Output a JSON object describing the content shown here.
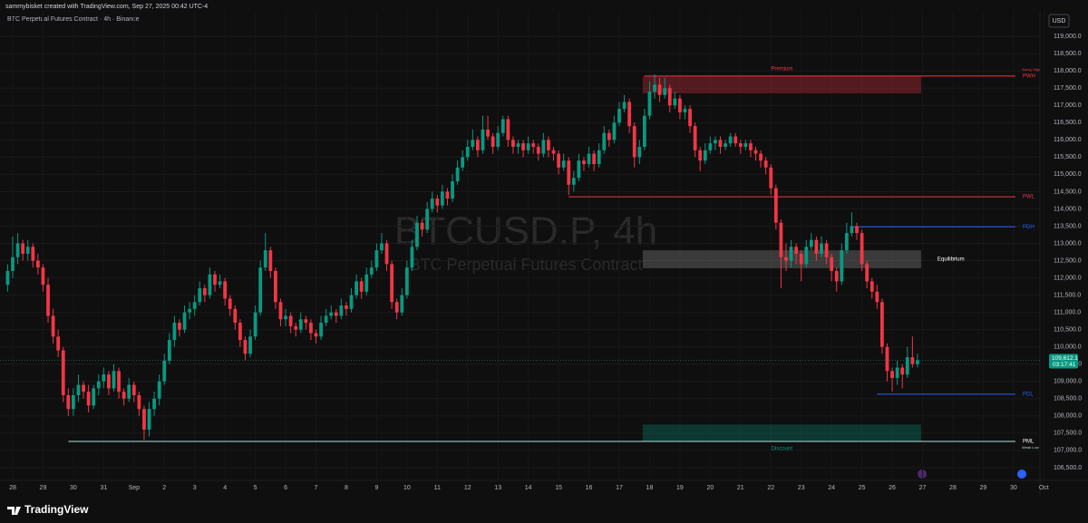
{
  "header": "sammybisket created with TradingView.com, Sep 27, 2025 00:42 UTC-4",
  "chart_data": {
    "type": "candlestick",
    "title": "BTC Perpetual Futures Contract · 4h · Binance",
    "watermark": "BTCUSD.P, 4h",
    "watermark_subtitle": "BTC Perpetual Futures Contract",
    "currency": "USD",
    "up_color": "#089981",
    "down_color": "#f23645",
    "ylim": [
      106130,
      119740
    ],
    "yticks": [
      {
        "value": 119000,
        "label": "119,000.0"
      },
      {
        "value": 118500,
        "label": "118,500.0"
      },
      {
        "value": 118000,
        "label": "118,000.0"
      },
      {
        "value": 117500,
        "label": "117,500.0"
      },
      {
        "value": 117000,
        "label": "117,000.0"
      },
      {
        "value": 116500,
        "label": "116,500.0"
      },
      {
        "value": 116000,
        "label": "116,000.0"
      },
      {
        "value": 115500,
        "label": "115,500.0"
      },
      {
        "value": 115000,
        "label": "115,000.0"
      },
      {
        "value": 114500,
        "label": "114,500.0"
      },
      {
        "value": 114000,
        "label": "114,000.0"
      },
      {
        "value": 113500,
        "label": "113,500.0"
      },
      {
        "value": 113000,
        "label": "113,000.0"
      },
      {
        "value": 112500,
        "label": "112,500.0"
      },
      {
        "value": 112000,
        "label": "112,000.0"
      },
      {
        "value": 111500,
        "label": "111,500.0"
      },
      {
        "value": 111000,
        "label": "111,000.0"
      },
      {
        "value": 110500,
        "label": "110,500.0"
      },
      {
        "value": 110000,
        "label": "110,000.0"
      },
      {
        "value": 109500,
        "label": "109,500.0"
      },
      {
        "value": 109000,
        "label": "109,000.0"
      },
      {
        "value": 108500,
        "label": "108,500.0"
      },
      {
        "value": 108000,
        "label": "108,000.0"
      },
      {
        "value": 107500,
        "label": "107,500.0"
      },
      {
        "value": 107000,
        "label": "107,000.0"
      },
      {
        "value": 106500,
        "label": "106,500.0"
      }
    ],
    "xtick_labels": [
      "28",
      "29",
      "30",
      "31",
      "Sep",
      "2",
      "3",
      "4",
      "5",
      "6",
      "7",
      "8",
      "9",
      "10",
      "11",
      "12",
      "13",
      "14",
      "15",
      "16",
      "17",
      "18",
      "19",
      "20",
      "21",
      "22",
      "23",
      "24",
      "25",
      "26",
      "27",
      "28",
      "29",
      "30",
      "Oct"
    ],
    "last_price": 109612.1,
    "last_price_label": "109,612.1",
    "countdown": "03:17:41",
    "ohlc": [
      [
        111800,
        112400,
        111600,
        112200
      ],
      [
        112200,
        113200,
        112000,
        112600
      ],
      [
        112600,
        113300,
        112400,
        113000
      ],
      [
        113000,
        113100,
        112500,
        112700
      ],
      [
        112700,
        113100,
        112500,
        112900
      ],
      [
        112900,
        113000,
        112300,
        112500
      ],
      [
        112500,
        112700,
        112100,
        112300
      ],
      [
        112300,
        112400,
        111600,
        111800
      ],
      [
        111800,
        112000,
        110700,
        110900
      ],
      [
        110900,
        111100,
        110100,
        110300
      ],
      [
        110300,
        110500,
        109700,
        109900
      ],
      [
        109900,
        110000,
        108400,
        108600
      ],
      [
        108600,
        108800,
        108000,
        108200
      ],
      [
        108200,
        108800,
        108000,
        108600
      ],
      [
        108600,
        109200,
        108400,
        108900
      ],
      [
        108900,
        109000,
        108500,
        108700
      ],
      [
        108700,
        108900,
        108100,
        108300
      ],
      [
        108300,
        108900,
        108200,
        108800
      ],
      [
        108800,
        109200,
        108600,
        109000
      ],
      [
        109000,
        109400,
        108800,
        109200
      ],
      [
        109200,
        109300,
        108600,
        108800
      ],
      [
        108800,
        109500,
        108700,
        109300
      ],
      [
        109300,
        109400,
        108500,
        108700
      ],
      [
        108700,
        108800,
        108300,
        108500
      ],
      [
        108500,
        109100,
        108400,
        108900
      ],
      [
        108900,
        109000,
        108400,
        108600
      ],
      [
        108600,
        108700,
        108000,
        108200
      ],
      [
        108200,
        108300,
        107300,
        107600
      ],
      [
        107600,
        108400,
        107400,
        108200
      ],
      [
        108200,
        108700,
        108000,
        108500
      ],
      [
        108500,
        109200,
        108300,
        109000
      ],
      [
        109000,
        109800,
        108900,
        109600
      ],
      [
        109600,
        110400,
        109500,
        110200
      ],
      [
        110200,
        110900,
        110000,
        110700
      ],
      [
        110700,
        110800,
        110300,
        110500
      ],
      [
        110500,
        111200,
        110400,
        111000
      ],
      [
        111000,
        111300,
        110800,
        111100
      ],
      [
        111100,
        111500,
        110900,
        111300
      ],
      [
        111300,
        111900,
        111200,
        111700
      ],
      [
        111700,
        111800,
        111300,
        111500
      ],
      [
        111500,
        112300,
        111400,
        112100
      ],
      [
        112100,
        112200,
        111600,
        111800
      ],
      [
        111800,
        112100,
        111700,
        111900
      ],
      [
        111900,
        112000,
        111200,
        111400
      ],
      [
        111400,
        111500,
        110900,
        111100
      ],
      [
        111100,
        111200,
        110500,
        110700
      ],
      [
        110700,
        110800,
        110000,
        110200
      ],
      [
        110200,
        110300,
        109600,
        109800
      ],
      [
        109800,
        110500,
        109700,
        110300
      ],
      [
        110300,
        111200,
        110200,
        111000
      ],
      [
        111000,
        112500,
        110900,
        112300
      ],
      [
        112300,
        113300,
        112200,
        112800
      ],
      [
        112800,
        112900,
        112000,
        112200
      ],
      [
        112200,
        112300,
        111100,
        111300
      ],
      [
        111300,
        111400,
        110600,
        110800
      ],
      [
        110800,
        111100,
        110600,
        110900
      ],
      [
        110900,
        111000,
        110400,
        110600
      ],
      [
        110600,
        110700,
        110300,
        110500
      ],
      [
        110500,
        111000,
        110400,
        110800
      ],
      [
        110800,
        110900,
        110500,
        110700
      ],
      [
        110700,
        110800,
        110200,
        110400
      ],
      [
        110400,
        110500,
        110100,
        110300
      ],
      [
        110300,
        110900,
        110200,
        110700
      ],
      [
        110700,
        111100,
        110600,
        110900
      ],
      [
        110900,
        111200,
        110800,
        111000
      ],
      [
        111000,
        111100,
        110700,
        110900
      ],
      [
        110900,
        111400,
        110800,
        111200
      ],
      [
        111200,
        111300,
        110900,
        111100
      ],
      [
        111100,
        111700,
        111000,
        111500
      ],
      [
        111500,
        112100,
        111400,
        111900
      ],
      [
        111900,
        112000,
        111400,
        111600
      ],
      [
        111600,
        112300,
        111500,
        112100
      ],
      [
        112100,
        112500,
        112000,
        112300
      ],
      [
        112300,
        113000,
        112200,
        112800
      ],
      [
        112800,
        113300,
        112700,
        113000
      ],
      [
        113000,
        113100,
        112200,
        112400
      ],
      [
        112400,
        112500,
        111100,
        111300
      ],
      [
        111300,
        111400,
        110800,
        111000
      ],
      [
        111000,
        111700,
        110900,
        111500
      ],
      [
        111500,
        112500,
        111400,
        112300
      ],
      [
        112300,
        113100,
        112200,
        112900
      ],
      [
        112900,
        113800,
        112800,
        113600
      ],
      [
        113600,
        113700,
        113200,
        113400
      ],
      [
        113400,
        114200,
        113300,
        114000
      ],
      [
        114000,
        114500,
        113900,
        114300
      ],
      [
        114300,
        114400,
        113900,
        114100
      ],
      [
        114100,
        114700,
        114000,
        114500
      ],
      [
        114500,
        114600,
        114100,
        114300
      ],
      [
        114300,
        115000,
        114200,
        114800
      ],
      [
        114800,
        115400,
        114700,
        115200
      ],
      [
        115200,
        115700,
        115100,
        115500
      ],
      [
        115500,
        116000,
        115400,
        115800
      ],
      [
        115800,
        116300,
        115700,
        116000
      ],
      [
        116000,
        116100,
        115500,
        115700
      ],
      [
        115700,
        116700,
        115600,
        116300
      ],
      [
        116300,
        116700,
        116000,
        116100
      ],
      [
        116100,
        116200,
        115600,
        115800
      ],
      [
        115800,
        116400,
        115700,
        116200
      ],
      [
        116200,
        116700,
        116100,
        116600
      ],
      [
        116600,
        116700,
        115800,
        116000
      ],
      [
        116000,
        116100,
        115600,
        115800
      ],
      [
        115800,
        116000,
        115600,
        115900
      ],
      [
        115900,
        116000,
        115500,
        115700
      ],
      [
        115700,
        116100,
        115600,
        115900
      ],
      [
        115900,
        116000,
        115600,
        115800
      ],
      [
        115800,
        115900,
        115400,
        115600
      ],
      [
        115600,
        116200,
        115500,
        116000
      ],
      [
        116000,
        116100,
        115500,
        115700
      ],
      [
        115700,
        115800,
        115400,
        115600
      ],
      [
        115600,
        115700,
        115000,
        115200
      ],
      [
        115200,
        115600,
        115100,
        115400
      ],
      [
        115400,
        115500,
        114400,
        114700
      ],
      [
        114700,
        115100,
        114500,
        114900
      ],
      [
        114900,
        115600,
        114800,
        115400
      ],
      [
        115400,
        115500,
        115100,
        115300
      ],
      [
        115300,
        115800,
        115200,
        115600
      ],
      [
        115600,
        115700,
        115100,
        115300
      ],
      [
        115300,
        115900,
        115200,
        115700
      ],
      [
        115700,
        116400,
        115600,
        116200
      ],
      [
        116200,
        116300,
        115800,
        116000
      ],
      [
        116000,
        116700,
        115900,
        116500
      ],
      [
        116500,
        117100,
        116400,
        116900
      ],
      [
        116900,
        117300,
        116800,
        117100
      ],
      [
        117100,
        117200,
        116200,
        116400
      ],
      [
        116400,
        116500,
        115200,
        115500
      ],
      [
        115500,
        116000,
        115300,
        115800
      ],
      [
        115800,
        116900,
        115700,
        116700
      ],
      [
        116700,
        117700,
        116600,
        117400
      ],
      [
        117400,
        117900,
        117200,
        117600
      ],
      [
        117600,
        117800,
        117100,
        117300
      ],
      [
        117300,
        117800,
        117200,
        117500
      ],
      [
        117500,
        117600,
        116800,
        117000
      ],
      [
        117000,
        117400,
        116900,
        117200
      ],
      [
        117200,
        117300,
        116600,
        116800
      ],
      [
        116800,
        117000,
        116600,
        116900
      ],
      [
        116900,
        117000,
        116200,
        116400
      ],
      [
        116400,
        116500,
        115500,
        115700
      ],
      [
        115700,
        115800,
        115100,
        115400
      ],
      [
        115400,
        115900,
        115300,
        115700
      ],
      [
        115700,
        116100,
        115600,
        115900
      ],
      [
        115900,
        116100,
        115700,
        116000
      ],
      [
        116000,
        116100,
        115600,
        115800
      ],
      [
        115800,
        116000,
        115700,
        115900
      ],
      [
        115900,
        116200,
        115800,
        116100
      ],
      [
        116100,
        116200,
        115800,
        115900
      ],
      [
        115900,
        116000,
        115600,
        115800
      ],
      [
        115800,
        116000,
        115700,
        115900
      ],
      [
        115900,
        116000,
        115500,
        115700
      ],
      [
        115700,
        115800,
        115400,
        115600
      ],
      [
        115600,
        115700,
        115200,
        115400
      ],
      [
        115400,
        115500,
        115000,
        115200
      ],
      [
        115200,
        115300,
        114400,
        114600
      ],
      [
        114600,
        114700,
        113400,
        113600
      ],
      [
        113600,
        113700,
        111700,
        112600
      ],
      [
        112600,
        113000,
        112200,
        112500
      ],
      [
        112500,
        113100,
        112300,
        112900
      ],
      [
        112900,
        113000,
        112400,
        112700
      ],
      [
        112700,
        112800,
        111900,
        112400
      ],
      [
        112400,
        113100,
        112300,
        112900
      ],
      [
        112900,
        113300,
        112800,
        113100
      ],
      [
        113100,
        113200,
        112500,
        112700
      ],
      [
        112700,
        113200,
        112600,
        113000
      ],
      [
        113000,
        113100,
        112400,
        112600
      ],
      [
        112600,
        112700,
        111900,
        112200
      ],
      [
        112200,
        112300,
        111600,
        111900
      ],
      [
        111900,
        113000,
        111800,
        112800
      ],
      [
        112800,
        113600,
        112700,
        113300
      ],
      [
        113300,
        113900,
        113200,
        113500
      ],
      [
        113500,
        113600,
        113100,
        113300
      ],
      [
        113300,
        113400,
        112200,
        112400
      ],
      [
        112400,
        112500,
        111700,
        111900
      ],
      [
        111900,
        112000,
        111400,
        111600
      ],
      [
        111600,
        111800,
        111100,
        111300
      ],
      [
        111300,
        111400,
        109800,
        110000
      ],
      [
        110000,
        110100,
        109000,
        109300
      ],
      [
        109300,
        109400,
        108700,
        109100
      ],
      [
        109100,
        109600,
        108900,
        109400
      ],
      [
        109400,
        109500,
        108800,
        109200
      ],
      [
        109200,
        110000,
        109100,
        109700
      ],
      [
        109700,
        110300,
        109400,
        109500
      ],
      [
        109500,
        109800,
        109400,
        109612.1
      ]
    ],
    "levels": [
      {
        "label": "PWH",
        "value": 117850,
        "from": 126,
        "color": "#f23645",
        "note": "Swing High"
      },
      {
        "label": "PWL",
        "value": 114350,
        "from": 111,
        "color": "#f23645"
      },
      {
        "label": "PDH",
        "value": 113480,
        "from": 167,
        "color": "#2962ff"
      },
      {
        "label": "PDL",
        "value": 108630,
        "from": 172,
        "color": "#2962ff"
      },
      {
        "label": "PML",
        "value": 107260,
        "from": 12,
        "color": "#b2dfdb",
        "note": "Weak Low"
      }
    ],
    "zones": [
      {
        "label": "Premium",
        "top": 117850,
        "bottom": 117350,
        "from": 126,
        "to": 180,
        "color": "#f23645"
      },
      {
        "label": "Equilibrium",
        "top": 112800,
        "bottom": 112280,
        "from": 126,
        "to": 180,
        "color": "#9e9e9e"
      },
      {
        "label": "Discount",
        "top": 107750,
        "bottom": 107260,
        "from": 126,
        "to": 180,
        "color": "#089981"
      }
    ]
  },
  "footer_logo": "TradingView"
}
